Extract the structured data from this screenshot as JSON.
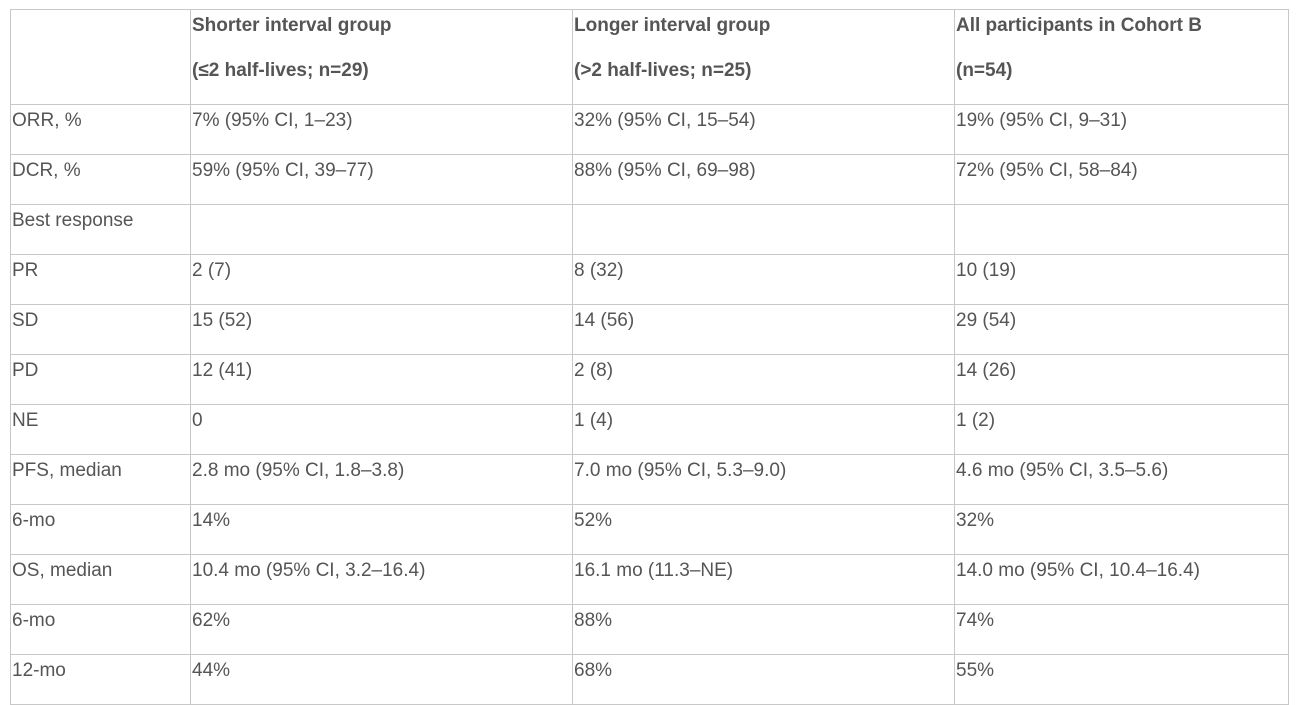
{
  "table": {
    "headers": [
      {
        "line1": "",
        "line2": ""
      },
      {
        "line1": "Shorter interval group",
        "line2": "(≤2 half-lives; n=29)"
      },
      {
        "line1": "Longer interval group",
        "line2": "(>2 half-lives; n=25)"
      },
      {
        "line1": "All participants in Cohort B",
        "line2": "(n=54)"
      }
    ],
    "rows": [
      [
        "ORR, %",
        "7% (95% CI, 1–23)",
        "32% (95% CI, 15–54)",
        "19% (95% CI, 9–31)"
      ],
      [
        "DCR, %",
        "59% (95% CI, 39–77)",
        "88% (95% CI, 69–98)",
        "72% (95% CI, 58–84)"
      ],
      [
        "Best response",
        "",
        "",
        ""
      ],
      [
        "PR",
        "2 (7)",
        "8 (32)",
        "10 (19)"
      ],
      [
        "SD",
        "15 (52)",
        "14 (56)",
        "29 (54)"
      ],
      [
        "PD",
        "12 (41)",
        "2 (8)",
        "14 (26)"
      ],
      [
        "NE",
        "0",
        "1 (4)",
        "1 (2)"
      ],
      [
        "PFS, median",
        "2.8 mo (95% CI, 1.8–3.8)",
        "7.0 mo (95% CI, 5.3–9.0)",
        "4.6 mo (95% CI, 3.5–5.6)"
      ],
      [
        "6-mo",
        "14%",
        "52%",
        "32%"
      ],
      [
        "OS, median",
        "10.4 mo (95% CI, 3.2–16.4)",
        "16.1 mo (11.3–NE)",
        "14.0 mo (95% CI, 10.4–16.4)"
      ],
      [
        "6-mo",
        "62%",
        "88%",
        "74%"
      ],
      [
        "12-mo",
        "44%",
        "68%",
        "55%"
      ]
    ]
  },
  "colors": {
    "text": "#555555",
    "border": "#c8c8c8",
    "background": "#ffffff"
  }
}
